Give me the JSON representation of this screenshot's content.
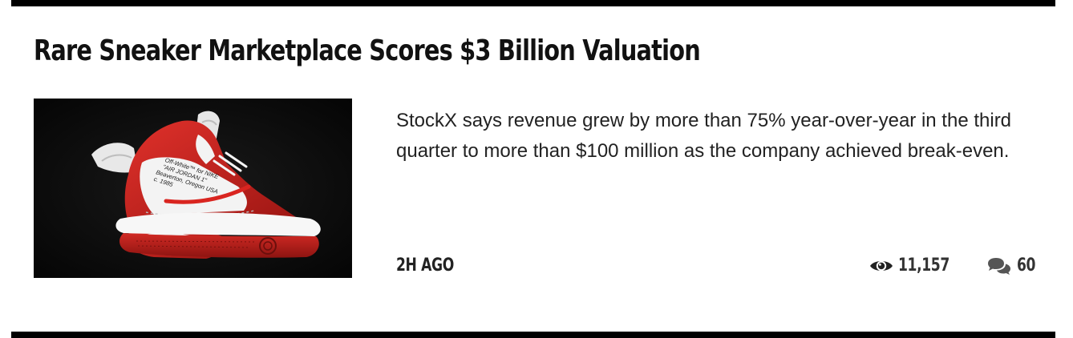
{
  "article": {
    "headline": "Rare Sneaker Marketplace Scores $3 Billion Valuation",
    "excerpt": "StockX says revenue grew by more than 75% year-over-year in the third quarter to more than $100 million as the company achieved break-even.",
    "timestamp": "2H AGO",
    "views": "11,157",
    "comments": "60",
    "image": {
      "shoe_text": [
        "Off-White™ for NIKE",
        "\"AIR JORDAN 1\"",
        "Beaverton, Oregon USA",
        "c. 1985"
      ],
      "colors": {
        "background": "#0b0b0b",
        "leather_red": "#c8201c",
        "leather_white": "#f2f2f2",
        "sole_red": "#b51a17"
      }
    }
  },
  "icons": {
    "views": "eye-icon",
    "comments": "comments-icon"
  },
  "colors": {
    "rule": "#000000",
    "text": "#111111",
    "meta": "#333333"
  }
}
